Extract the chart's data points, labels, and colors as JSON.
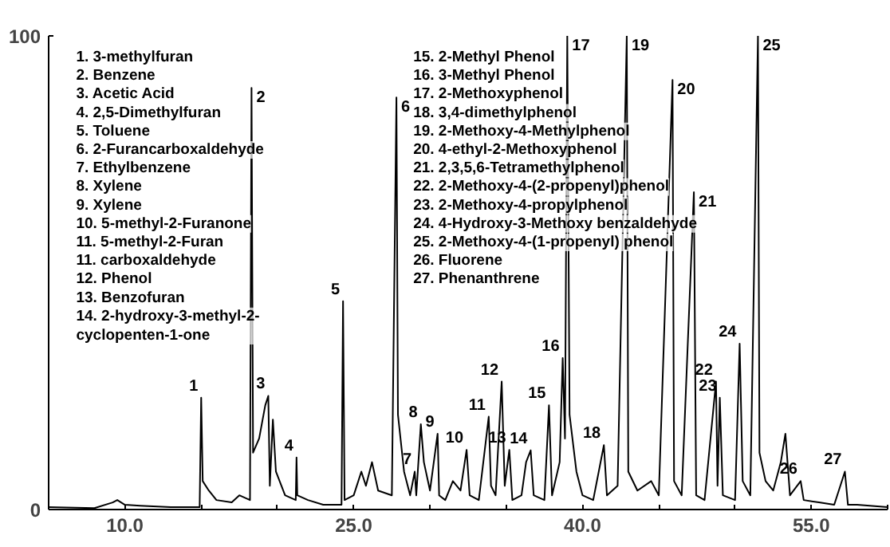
{
  "chart_data": {
    "type": "line",
    "xlim": [
      5,
      60
    ],
    "ylim": [
      0,
      100
    ],
    "grid": false,
    "marker": "none",
    "line_style": "solid",
    "xticks": [
      {
        "value": 5,
        "label": null
      },
      {
        "value": 10,
        "label": "10.0"
      },
      {
        "value": 15,
        "label": null
      },
      {
        "value": 20,
        "label": null
      },
      {
        "value": 25,
        "label": "25.0"
      },
      {
        "value": 30,
        "label": null
      },
      {
        "value": 35,
        "label": null
      },
      {
        "value": 40,
        "label": "40.0"
      },
      {
        "value": 45,
        "label": null
      },
      {
        "value": 50,
        "label": null
      },
      {
        "value": 55,
        "label": "55.0"
      },
      {
        "value": 60,
        "label": null
      }
    ],
    "yticks": [
      0,
      100
    ],
    "series": [
      {
        "color": "#000000",
        "x": [
          5,
          8,
          9.2,
          9.5,
          10,
          11,
          13,
          14.9,
          15,
          15.1,
          15.5,
          16,
          17,
          17.5,
          18.2,
          18.3,
          18.4,
          18.8,
          19.2,
          19.4,
          19.5,
          19.7,
          19.9,
          20.5,
          21.2,
          21.25,
          21.3,
          22,
          23,
          24.2,
          24.3,
          24.4,
          25,
          25.5,
          25.8,
          26.2,
          26.6,
          27.5,
          27.8,
          27.9,
          28.3,
          28.7,
          29,
          29.1,
          29.4,
          29.6,
          30,
          30.5,
          30.6,
          31,
          31.5,
          32,
          32.4,
          32.6,
          33.2,
          33.85,
          34,
          34.3,
          34.7,
          34.9,
          35.2,
          35.4,
          36,
          36.3,
          36.6,
          36.8,
          37.5,
          37.8,
          38,
          38.5,
          38.7,
          38.85,
          39,
          39.15,
          39.6,
          40,
          40.7,
          41.4,
          41.6,
          42.3,
          42.9,
          43,
          43.6,
          44.5,
          45,
          45.9,
          46,
          46.5,
          47.3,
          47.45,
          48,
          48.75,
          48.85,
          49,
          49.2,
          50,
          50.3,
          50.5,
          51,
          51.5,
          51.6,
          52,
          52.5,
          53,
          53.3,
          53.6,
          54.3,
          54.5,
          55.5,
          56.5,
          57.2,
          57.4,
          58,
          60
        ],
        "values": [
          0.5,
          0.3,
          1.5,
          2,
          1,
          0.8,
          0.5,
          0.5,
          23.6,
          6,
          4,
          2,
          1.5,
          3,
          2,
          89,
          12,
          15,
          22,
          24,
          5,
          19,
          8,
          3,
          2,
          11,
          3,
          2,
          1,
          1,
          44,
          2,
          3,
          8,
          5,
          10,
          4,
          3,
          87,
          20,
          8,
          3,
          8,
          3,
          18,
          10,
          4,
          16,
          3,
          2,
          6,
          4,
          12.6,
          3,
          2,
          19.6,
          5,
          3,
          27,
          5,
          12.6,
          2,
          3,
          10,
          12.5,
          3,
          2,
          22,
          3,
          10,
          32,
          15,
          100,
          20,
          8,
          3,
          2,
          13.6,
          3,
          5,
          100,
          8,
          4,
          6,
          3,
          90.7,
          6,
          3,
          67,
          3,
          2,
          27,
          5,
          23.6,
          3,
          2,
          35,
          6,
          3,
          100,
          12,
          6,
          4,
          10,
          16,
          3,
          6,
          2,
          1.5,
          1,
          8,
          1,
          1,
          0.5
        ]
      }
    ],
    "annotations": [
      {
        "text": "1",
        "x": 15,
        "y": 23.6
      },
      {
        "text": "2",
        "x": 18.3,
        "y": 89
      },
      {
        "text": "3",
        "x": 19.4,
        "y": 24
      },
      {
        "text": "4",
        "x": 21.25,
        "y": 11
      },
      {
        "text": "5",
        "x": 24.3,
        "y": 44
      },
      {
        "text": "6",
        "x": 27.8,
        "y": 87
      },
      {
        "text": "7",
        "x": 29,
        "y": 8
      },
      {
        "text": "8",
        "x": 29.4,
        "y": 18
      },
      {
        "text": "9",
        "x": 30.5,
        "y": 16
      },
      {
        "text": "10",
        "x": 32.4,
        "y": 12.6
      },
      {
        "text": "11",
        "x": 33.85,
        "y": 19.6
      },
      {
        "text": "12",
        "x": 34.7,
        "y": 27
      },
      {
        "text": "13",
        "x": 35.2,
        "y": 12.6
      },
      {
        "text": "14",
        "x": 36.6,
        "y": 12.5
      },
      {
        "text": "15",
        "x": 37.8,
        "y": 22
      },
      {
        "text": "16",
        "x": 38.7,
        "y": 32
      },
      {
        "text": "17",
        "x": 39,
        "y": 100
      },
      {
        "text": "18",
        "x": 41.4,
        "y": 13.6
      },
      {
        "text": "19",
        "x": 42.9,
        "y": 100
      },
      {
        "text": "20",
        "x": 45.9,
        "y": 90.7
      },
      {
        "text": "21",
        "x": 47.3,
        "y": 67
      },
      {
        "text": "22",
        "x": 48.75,
        "y": 27
      },
      {
        "text": "23",
        "x": 49,
        "y": 23.6
      },
      {
        "text": "24",
        "x": 50.3,
        "y": 35
      },
      {
        "text": "25",
        "x": 51.5,
        "y": 100
      },
      {
        "text": "26",
        "x": 54.3,
        "y": 6
      },
      {
        "text": "27",
        "x": 57.2,
        "y": 8
      },
      "1. 3-methylfuran",
      "2. Benzene",
      "3. Acetic Acid",
      "4. 2,5-Dimethylfuran",
      "5. Toluene",
      "6. 2-Furancarboxaldehyde",
      "7. Ethylbenzene",
      "8. Xylene",
      "9. Xylene",
      "10. 5-methyl-2-Furanone",
      "11. 5-methyl-2-Furan",
      "11. carboxaldehyde",
      "12. Phenol",
      "13. Benzofuran",
      "14. 2-hydroxy-3-methyl-2-\n    cyclopenten-1-one",
      "15. 2-Methyl Phenol",
      "16. 3-Methyl Phenol",
      "17. 2-Methoxyphenol",
      "18. 3,4-dimethylphenol",
      "19. 2-Methoxy-4-Methylphenol",
      "20. 4-ethyl-2-Methoxyphenol",
      "21. 2,3,5,6-Tetramethylphenol",
      "22. 2-Methoxy-4-(2-propenyl)phenol",
      "23. 2-Methoxy-4-propylphenol",
      "24. 4-Hydroxy-3-Methoxy benzaldehyde",
      "25. 2-Methoxy-4-(1-propenyl) phenol",
      "26. Fluorene",
      "27. Phenanthrene"
    ]
  }
}
